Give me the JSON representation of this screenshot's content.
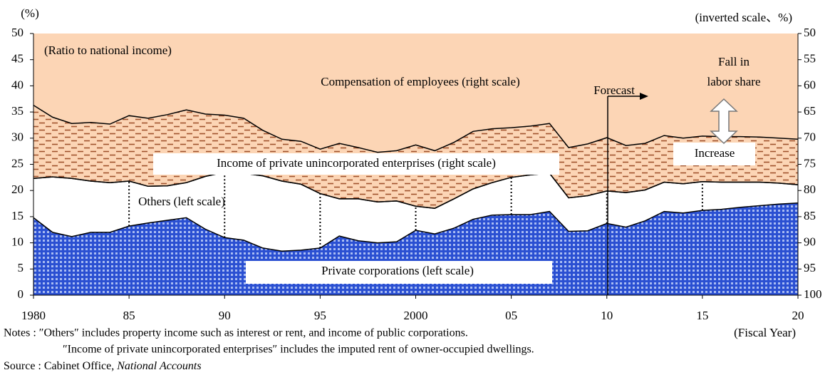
{
  "chart_data": {
    "type": "stacked-area",
    "left_axis_unit": "(%)",
    "right_axis_unit": "(inverted scale、%)",
    "x_label": "(Fiscal Year)",
    "annotations": [
      "(Ratio to national income)",
      "Forecast",
      "Fall in",
      "labor share",
      "Increase"
    ],
    "x": [
      1980,
      1981,
      1982,
      1983,
      1984,
      1985,
      1986,
      1987,
      1988,
      1989,
      1990,
      1991,
      1992,
      1993,
      1994,
      1995,
      1996,
      1997,
      1998,
      1999,
      2000,
      2001,
      2002,
      2003,
      2004,
      2005,
      2006,
      2007,
      2008,
      2009,
      2010,
      2011,
      2012,
      2013,
      2014,
      2015,
      2016,
      2017,
      2018,
      2019,
      2020
    ],
    "xlim": [
      1980,
      2020
    ],
    "xticks": [
      1980,
      {
        "value": 1985,
        "label": "85"
      },
      {
        "value": 1990,
        "label": "90"
      },
      {
        "value": 1995,
        "label": "95"
      },
      2000,
      {
        "value": 2005,
        "label": "05"
      },
      {
        "value": 2010,
        "label": "10"
      },
      {
        "value": 2015,
        "label": "15"
      },
      {
        "value": 2020,
        "label": "20"
      }
    ],
    "ylim": [
      0,
      50
    ],
    "yticks": [
      0,
      5,
      10,
      15,
      20,
      25,
      30,
      35,
      40,
      45,
      50
    ],
    "y2lim": [
      100,
      50
    ],
    "y2ticks": [
      50,
      55,
      60,
      65,
      70,
      75,
      80,
      85,
      90,
      95,
      100
    ],
    "series": [
      {
        "name": "Private corporations (left scale)",
        "axis": "y",
        "color": "#2b50d2",
        "fill_pattern": "checker",
        "values": [
          14.8,
          12,
          11.2,
          12,
          12,
          13.2,
          13.8,
          14.3,
          14.8,
          12.6,
          11,
          10.5,
          9,
          8.4,
          8.6,
          9,
          11.3,
          10.4,
          10,
          10.2,
          12.4,
          11.7,
          12.8,
          14.5,
          15.3,
          15.4,
          15.4,
          16,
          12.2,
          12.3,
          13.7,
          13,
          14.2,
          16,
          15.7,
          16.2,
          16.4,
          16.8,
          17.1,
          17.4,
          17.6
        ]
      },
      {
        "name": "Others (left scale)",
        "axis": "y",
        "color": "#ffffff",
        "fill_pattern": "solid",
        "values": [
          7.5,
          10.6,
          11.1,
          9.8,
          9.5,
          8.6,
          7.0,
          6.6,
          6.7,
          10.1,
          12.5,
          12.8,
          13.8,
          13.4,
          12.6,
          10.4,
          7.1,
          8.0,
          7.8,
          7.8,
          4.6,
          4.9,
          5.6,
          5.8,
          6.2,
          7.1,
          7.6,
          7.3,
          6.4,
          6.7,
          6.2,
          6.6,
          5.9,
          5.6,
          5.6,
          5.5,
          5.2,
          4.8,
          4.5,
          4.0,
          3.5
        ]
      },
      {
        "name": "Compensation of employees (right scale)",
        "axis": "y2",
        "color": "#fcd5b5",
        "fill_pattern": "solid",
        "values": [
          63.7,
          66,
          67.2,
          67,
          67.3,
          65.7,
          66.2,
          65.5,
          64.6,
          65.4,
          65.6,
          66.2,
          68.5,
          70.2,
          70.6,
          72.1,
          71,
          71.8,
          72.7,
          72.4,
          71.3,
          72.4,
          70.8,
          68.7,
          68.2,
          68,
          67.7,
          67.2,
          71.8,
          71.1,
          69.9,
          71.4,
          71,
          69.5,
          70,
          69.6,
          69.7,
          69.7,
          69.8,
          70,
          70.2
        ]
      },
      {
        "name": "Income of private unincorporated enterprises (right scale)",
        "axis": "y2",
        "color": "#a0522d",
        "fill_pattern": "dash",
        "values": [
          14.0,
          11.4,
          10.5,
          11.2,
          11.2,
          12.5,
          13.0,
          13.6,
          13.9,
          11.9,
          10.9,
          10.5,
          8.7,
          8.0,
          8.2,
          8.5,
          10.6,
          9.8,
          9.5,
          9.6,
          11.7,
          11.0,
          10.8,
          11.0,
          10.3,
          9.5,
          9.3,
          9.5,
          9.6,
          9.9,
          10.2,
          9.0,
          8.9,
          8.9,
          8.7,
          8.7,
          8.7,
          8.7,
          8.6,
          8.6,
          8.7
        ]
      }
    ]
  },
  "notes": [
    "Notes : ″Others″ includes property income such as interest or rent, and income of public corporations.",
    "″Income of private unincorporated enterprises″ includes the imputed rent of owner-occupied dwellings."
  ],
  "source": {
    "prefix": "Source : Cabinet Office, ",
    "title": "National Accounts"
  }
}
